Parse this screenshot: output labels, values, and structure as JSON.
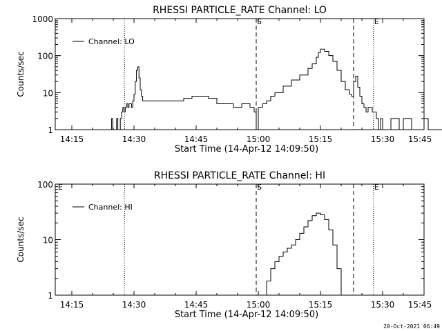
{
  "footer_timestamp": "20-Oct-2021 06:49",
  "chart_data": [
    {
      "type": "line",
      "title": "RHESSI PARTICLE_RATE Channel: LO",
      "xlabel": "Start Time (14-Apr-12 14:09:50)",
      "ylabel": "Counts/sec",
      "yscale": "log",
      "xlim": [
        11,
        100
      ],
      "ylim": [
        1,
        1000
      ],
      "x_ticks": [
        {
          "value": 15,
          "label": "14:15"
        },
        {
          "value": 30,
          "label": "14:30"
        },
        {
          "value": 45,
          "label": "14:45"
        },
        {
          "value": 60,
          "label": "15:00"
        },
        {
          "value": 75,
          "label": "15:15"
        },
        {
          "value": 90,
          "label": "15:30"
        },
        {
          "value": 105,
          "label": "15:45"
        }
      ],
      "y_ticks": [
        {
          "value": 1,
          "label": "1"
        },
        {
          "value": 10,
          "label": "10"
        },
        {
          "value": 100,
          "label": "100"
        },
        {
          "value": 1000,
          "label": "1000"
        }
      ],
      "legend": {
        "position": "top-left",
        "entries": [
          "Channel: LO"
        ]
      },
      "markers": [
        {
          "label": "",
          "x": 27.7,
          "style": "dotted"
        },
        {
          "label": "S",
          "x": 59.5,
          "style": "dashed"
        },
        {
          "label": "",
          "x": 83,
          "style": "dashed"
        },
        {
          "label": "E",
          "x": 87.8,
          "style": "dotted"
        },
        {
          "label": "",
          "x": 105.5,
          "style": "dotted"
        }
      ],
      "series": [
        {
          "name": "Channel: LO",
          "x": [
            24.3,
            24.6,
            24.9,
            25.2,
            25.5,
            25.8,
            26.1,
            26.4,
            26.7,
            27.0,
            27.3,
            27.6,
            27.9,
            28.2,
            28.5,
            28.8,
            29.1,
            29.4,
            29.7,
            30.0,
            30.3,
            30.6,
            30.9,
            31.2,
            31.5,
            31.8,
            32.1,
            32.4,
            32.7,
            33,
            34,
            36,
            38,
            40,
            42,
            44,
            46,
            48,
            50,
            52,
            54,
            56,
            58,
            59,
            59.5,
            60,
            61,
            62,
            63,
            64,
            66,
            68,
            70,
            72,
            73,
            74,
            74.5,
            75,
            76,
            77,
            78,
            79,
            80,
            81,
            82,
            82.5,
            83,
            83.5,
            84,
            84.5,
            85,
            85.5,
            86,
            86.5,
            87,
            87.5,
            88,
            88.5,
            89,
            89.5,
            90,
            90.5,
            91,
            92,
            94,
            95,
            97,
            98,
            100,
            101,
            103,
            104.5
          ],
          "values": [
            1,
            2,
            1,
            1,
            1,
            2,
            1,
            1,
            2,
            3,
            4,
            3,
            4,
            5,
            4,
            5,
            5,
            4,
            6,
            9,
            20,
            40,
            50,
            25,
            12,
            8,
            6,
            6,
            6,
            6,
            6,
            6,
            6,
            6,
            7,
            8,
            8,
            7,
            5,
            5,
            4,
            5,
            4,
            3,
            1,
            4,
            5,
            6,
            8,
            10,
            15,
            22,
            30,
            45,
            60,
            90,
            120,
            150,
            130,
            100,
            70,
            40,
            20,
            12,
            9,
            8,
            20,
            28,
            14,
            8,
            5,
            4,
            3,
            4,
            4,
            3,
            3,
            2,
            1,
            2,
            1,
            1,
            1,
            2,
            1,
            2,
            1,
            1,
            2,
            1,
            1,
            2
          ]
        }
      ]
    },
    {
      "type": "line",
      "title": "RHESSI PARTICLE_RATE Channel: HI",
      "xlabel": "Start Time (14-Apr-12 14:09:50)",
      "ylabel": "Counts/sec",
      "yscale": "log",
      "xlim": [
        11,
        100
      ],
      "ylim": [
        1,
        100
      ],
      "x_ticks": [
        {
          "value": 15,
          "label": "14:15"
        },
        {
          "value": 30,
          "label": "14:30"
        },
        {
          "value": 45,
          "label": "14:45"
        },
        {
          "value": 60,
          "label": "15:00"
        },
        {
          "value": 75,
          "label": "15:15"
        },
        {
          "value": 90,
          "label": "15:30"
        },
        {
          "value": 105,
          "label": "15:45"
        }
      ],
      "y_ticks": [
        {
          "value": 1,
          "label": "1"
        },
        {
          "value": 10,
          "label": "10"
        },
        {
          "value": 100,
          "label": "100"
        }
      ],
      "legend": {
        "position": "top-left",
        "entries": [
          "Channel: HI"
        ]
      },
      "markers": [
        {
          "label": "E",
          "x": 11.5,
          "style": "none"
        },
        {
          "label": "",
          "x": 27.7,
          "style": "dotted"
        },
        {
          "label": "S",
          "x": 59.5,
          "style": "dashed"
        },
        {
          "label": "",
          "x": 83,
          "style": "dashed"
        },
        {
          "label": "E",
          "x": 87.8,
          "style": "dotted"
        },
        {
          "label": "",
          "x": 105.5,
          "style": "dotted"
        }
      ],
      "series": [
        {
          "name": "Channel: HI",
          "x": [
            61,
            62,
            63,
            64,
            65,
            66,
            67,
            68,
            69,
            70,
            71,
            72,
            73,
            74,
            75,
            76,
            77,
            78,
            79,
            80
          ],
          "values": [
            1,
            1.8,
            3,
            4,
            5,
            6,
            7,
            8,
            10,
            13,
            17,
            22,
            27,
            30,
            28,
            23,
            15,
            8,
            3,
            1
          ]
        }
      ]
    }
  ]
}
